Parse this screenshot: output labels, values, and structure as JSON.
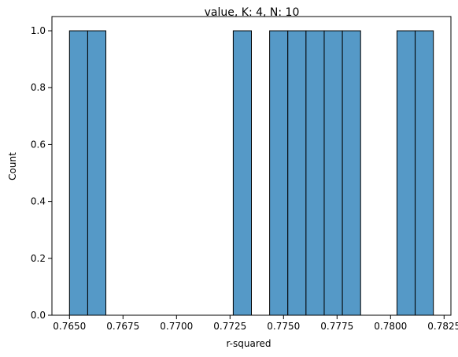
{
  "chart_data": {
    "type": "bar",
    "title": "value, K: 4, N: 10",
    "xlabel": "r-squared",
    "ylabel": "Count",
    "xlim": [
      0.76418,
      0.78282
    ],
    "ylim": [
      0,
      1.05
    ],
    "xticks": [
      0.765,
      0.7675,
      0.77,
      0.7725,
      0.775,
      0.7775,
      0.78,
      0.7825
    ],
    "xtick_labels": [
      "0.7650",
      "0.7675",
      "0.7700",
      "0.7725",
      "0.7750",
      "0.7775",
      "0.7800",
      "0.7825"
    ],
    "yticks": [
      0,
      0.2,
      0.4,
      0.6,
      0.8,
      1.0
    ],
    "ytick_labels": [
      "0.0",
      "0.2",
      "0.4",
      "0.6",
      "0.8",
      "1.0"
    ],
    "bin_width": 0.00085,
    "bins": [
      {
        "x0": 0.765,
        "x1": 0.76585,
        "count": 1
      },
      {
        "x0": 0.76585,
        "x1": 0.7667,
        "count": 1
      },
      {
        "x0": 0.77265,
        "x1": 0.7735,
        "count": 1
      },
      {
        "x0": 0.77435,
        "x1": 0.7752,
        "count": 1
      },
      {
        "x0": 0.7752,
        "x1": 0.77605,
        "count": 1
      },
      {
        "x0": 0.77605,
        "x1": 0.7769,
        "count": 1
      },
      {
        "x0": 0.7769,
        "x1": 0.77775,
        "count": 1
      },
      {
        "x0": 0.77775,
        "x1": 0.7786,
        "count": 1
      },
      {
        "x0": 0.7803,
        "x1": 0.78115,
        "count": 1
      },
      {
        "x0": 0.78115,
        "x1": 0.782,
        "count": 1
      }
    ],
    "bar_color": "#5599c7",
    "edge_color": "#000000",
    "grid": false,
    "legend": "none"
  }
}
